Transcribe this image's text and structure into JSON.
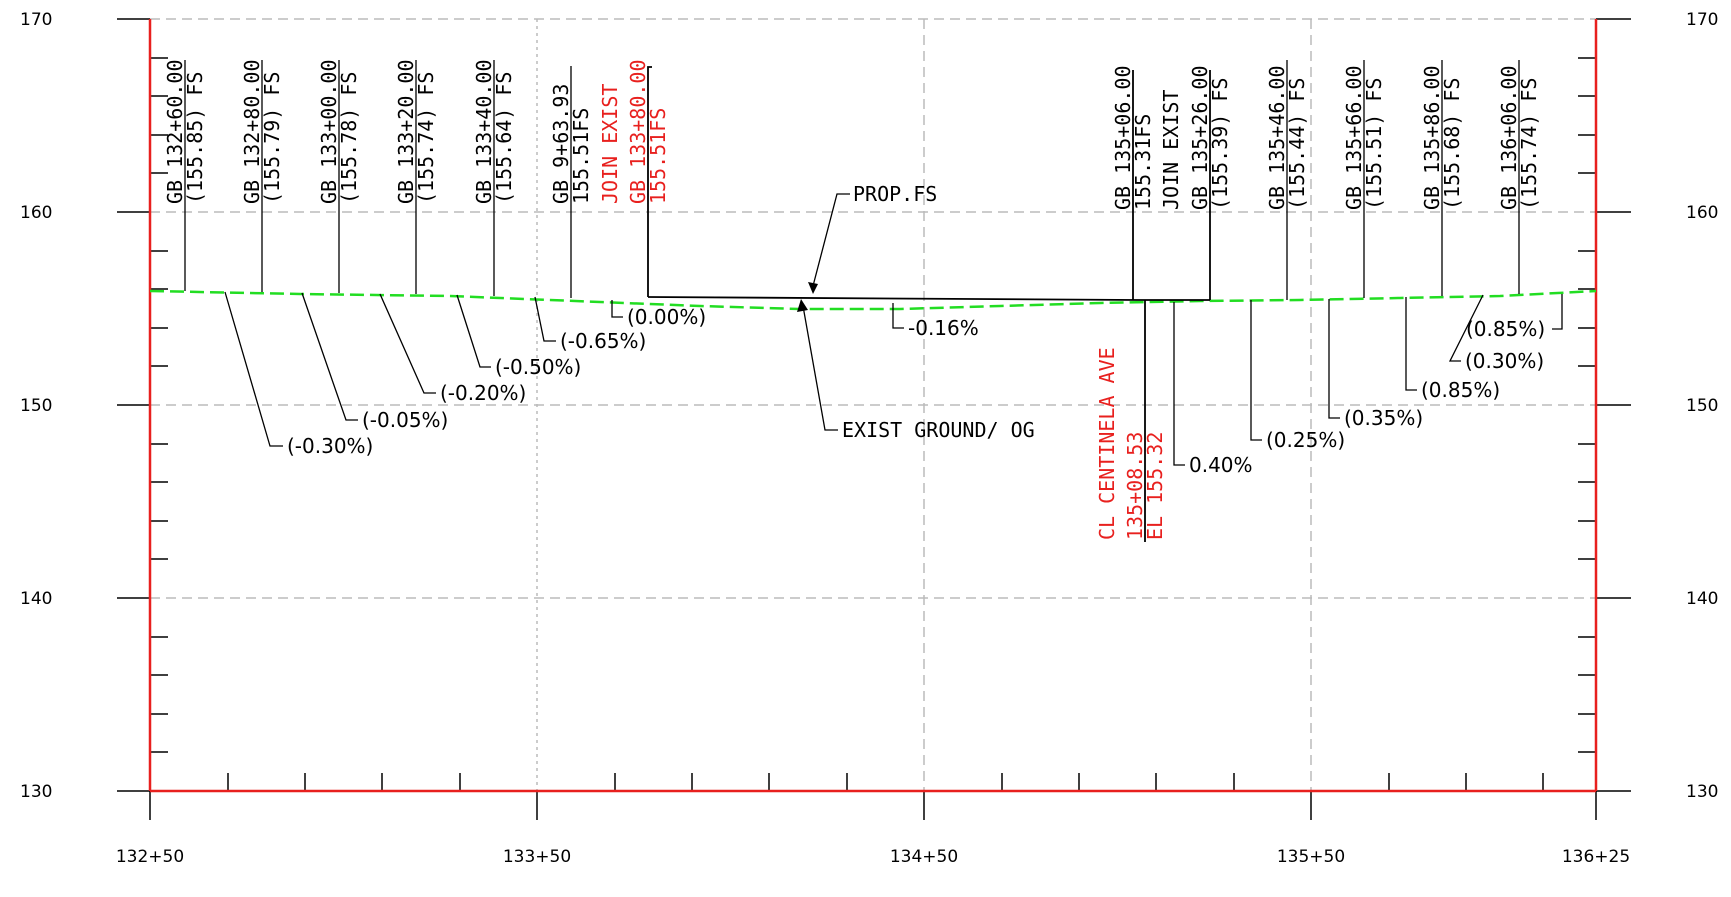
{
  "axes": {
    "elevation_ticks": [
      "170",
      "160",
      "150",
      "140",
      "130"
    ],
    "station_ticks": [
      "132+50",
      "133+50",
      "134+50",
      "135+50",
      "136+25"
    ]
  },
  "labels": {
    "prop_fs": "PROP.FS",
    "exist_ground": "EXIST GROUND/ OG",
    "centerline": {
      "line1": "CL CENTINELA AVE",
      "line2": "135+08.53",
      "line3": "EL 155.32"
    }
  },
  "grade_breaks": [
    {
      "l1": "GB 132+60.00",
      "l2": "(155.85) FS",
      "color": "black"
    },
    {
      "l1": "GB 132+80.00",
      "l2": "(155.79) FS",
      "color": "black"
    },
    {
      "l1": "GB 133+00.00",
      "l2": "(155.78) FS",
      "color": "black"
    },
    {
      "l1": "GB 133+20.00",
      "l2": "(155.74) FS",
      "color": "black"
    },
    {
      "l1": "GB 133+40.00",
      "l2": "(155.64) FS",
      "color": "black"
    },
    {
      "l1": "GB 9+63.93",
      "l2": "155.51FS",
      "color": "black"
    },
    {
      "l1": "JOIN EXIST",
      "l2": "GB 133+80.00",
      "l3": "155.51FS",
      "color": "red"
    },
    {
      "l1": "GB 135+06.00",
      "l2": "155.31FS",
      "color": "black"
    },
    {
      "l1": "JOIN EXIST",
      "l2": "GB 135+26.00",
      "l3": "(155.39) FS",
      "color": "black"
    },
    {
      "l1": "GB 135+46.00",
      "l2": "(155.44) FS",
      "color": "black"
    },
    {
      "l1": "GB 135+66.00",
      "l2": "(155.51) FS",
      "color": "black"
    },
    {
      "l1": "GB 135+86.00",
      "l2": "(155.68) FS",
      "color": "black"
    },
    {
      "l1": "GB 136+06.00",
      "l2": "(155.74) FS",
      "color": "black"
    }
  ],
  "slopes": [
    "(-0.30%)",
    "(-0.05%)",
    "(-0.20%)",
    "(-0.50%)",
    "(-0.65%)",
    "(0.00%)",
    "-0.16%",
    "0.40%",
    "(0.25%)",
    "(0.35%)",
    "(0.85%)",
    "(0.30%)",
    "(0.85%)"
  ],
  "colors": {
    "frame": "#e8201e",
    "existing_ground": "#22dd22",
    "grid": "#bbbbbb",
    "text_red": "#e8201e"
  }
}
